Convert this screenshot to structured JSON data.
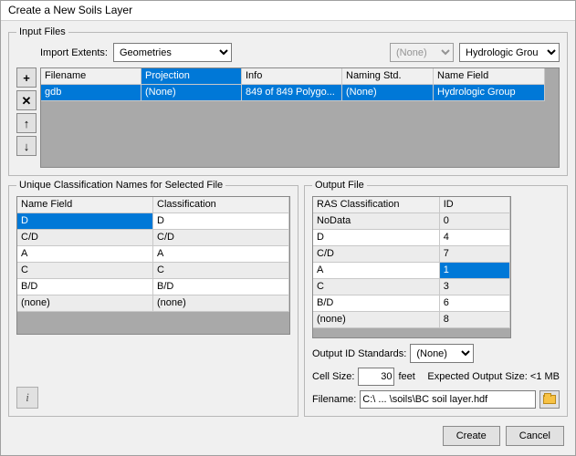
{
  "window": {
    "title": "Create a New Soils Layer"
  },
  "inputFiles": {
    "legend": "Input Files",
    "importExtentsLabel": "Import Extents:",
    "importExtentsValue": "Geometries",
    "dropdownDisabled": "(None)",
    "nameFieldDropdown": "Hydrologic Grou",
    "headers": {
      "filename": "Filename",
      "projection": "Projection",
      "info": "Info",
      "naming": "Naming Std.",
      "namefield": "Name Field"
    },
    "row": {
      "filename": "gdb",
      "projection": "(None)",
      "info": "849 of 849 Polygo...",
      "naming": "(None)",
      "namefield": "Hydrologic Group"
    },
    "btns": {
      "add": "+",
      "del": "✕",
      "up": "↑",
      "down": "↓"
    }
  },
  "unique": {
    "legend": "Unique Classification Names for Selected File",
    "headers": {
      "name": "Name Field",
      "class": "Classification"
    },
    "rows": [
      {
        "name": "D",
        "class": "D"
      },
      {
        "name": "C/D",
        "class": "C/D"
      },
      {
        "name": "A",
        "class": "A"
      },
      {
        "name": "C",
        "class": "C"
      },
      {
        "name": "B/D",
        "class": "B/D"
      },
      {
        "name": "(none)",
        "class": "(none)"
      }
    ]
  },
  "output": {
    "legend": "Output File",
    "headers": {
      "ras": "RAS Classification",
      "id": "ID"
    },
    "rows": [
      {
        "ras": "NoData",
        "id": "0"
      },
      {
        "ras": "D",
        "id": "4"
      },
      {
        "ras": "C/D",
        "id": "7"
      },
      {
        "ras": "A",
        "id": "1"
      },
      {
        "ras": "C",
        "id": "3"
      },
      {
        "ras": "B/D",
        "id": "6"
      },
      {
        "ras": "(none)",
        "id": "8"
      }
    ],
    "stdLabel": "Output ID Standards:",
    "stdValue": "(None)",
    "cellSizeLabel": "Cell Size:",
    "cellSizeValue": "30",
    "cellSizeUnit": "feet",
    "expectedLabel": "Expected Output Size: <1 MB",
    "filenameLabel": "Filename:",
    "filenameValue": "C:\\ ... \\soils\\BC soil layer.hdf"
  },
  "buttons": {
    "create": "Create",
    "cancel": "Cancel",
    "info": "i"
  },
  "colwidths": {
    "if": [
      110,
      110,
      110,
      100,
      122
    ],
    "unique": [
      150,
      150
    ],
    "out": [
      140,
      78
    ]
  },
  "colors": {
    "sel": "#0078d7",
    "gridbg": "#a9a9a9",
    "alt": "#ececec"
  }
}
